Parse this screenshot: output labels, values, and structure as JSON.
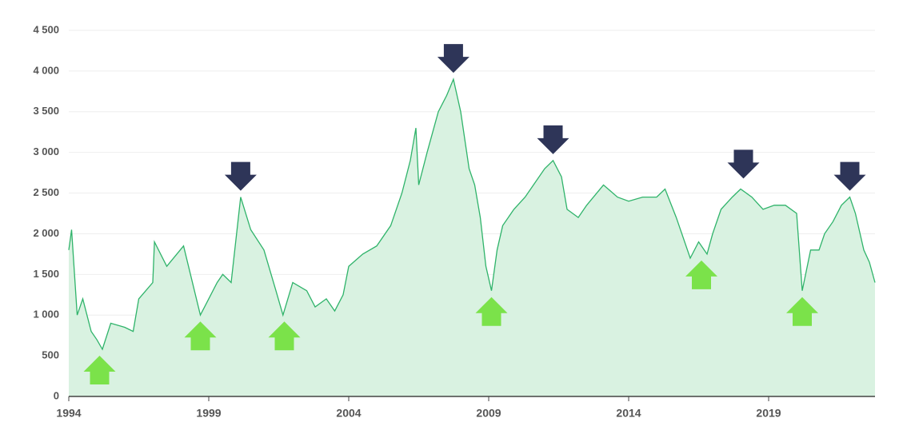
{
  "chart_data": {
    "type": "area",
    "x": [
      1994.0,
      1994.1,
      1994.3,
      1994.5,
      1994.8,
      1995.0,
      1995.2,
      1995.5,
      1996.0,
      1996.3,
      1996.5,
      1997.0,
      1997.06,
      1997.5,
      1998.1,
      1998.7,
      1999.3,
      1999.5,
      1999.8,
      2000.14,
      2000.5,
      2000.97,
      2001.4,
      2001.65,
      2002.0,
      2002.5,
      2002.8,
      2003.2,
      2003.5,
      2003.8,
      2004.0,
      2004.5,
      2005.0,
      2005.5,
      2005.9,
      2006.2,
      2006.4,
      2006.5,
      2006.8,
      2007.2,
      2007.5,
      2007.74,
      2008.0,
      2008.3,
      2008.5,
      2008.7,
      2008.9,
      2009.1,
      2009.3,
      2009.5,
      2009.9,
      2010.3,
      2010.6,
      2011.0,
      2011.3,
      2011.6,
      2011.8,
      2012.2,
      2012.5,
      2013.1,
      2013.6,
      2014.0,
      2014.5,
      2015.0,
      2015.3,
      2015.7,
      2016.2,
      2016.5,
      2016.8,
      2017.0,
      2017.3,
      2017.7,
      2018.0,
      2018.4,
      2018.8,
      2019.2,
      2019.6,
      2020.0,
      2020.2,
      2020.5,
      2020.8,
      2021.0,
      2021.3,
      2021.6,
      2021.9,
      2022.1,
      2022.4,
      2022.6,
      2022.8
    ],
    "values": [
      1800,
      2050,
      1000,
      1200,
      800,
      700,
      580,
      900,
      850,
      800,
      1200,
      1400,
      1900,
      1600,
      1850,
      1000,
      1400,
      1500,
      1400,
      2450,
      2050,
      1800,
      1300,
      1000,
      1400,
      1300,
      1100,
      1200,
      1050,
      1250,
      1600,
      1750,
      1850,
      2100,
      2500,
      2900,
      3300,
      2600,
      3000,
      3500,
      3700,
      3900,
      3500,
      2800,
      2600,
      2200,
      1600,
      1300,
      1800,
      2100,
      2300,
      2450,
      2600,
      2800,
      2900,
      2700,
      2300,
      2200,
      2350,
      2600,
      2450,
      2400,
      2450,
      2450,
      2550,
      2200,
      1700,
      1900,
      1750,
      2000,
      2300,
      2450,
      2550,
      2450,
      2300,
      2350,
      2350,
      2250,
      1300,
      1800,
      1800,
      2000,
      2150,
      2350,
      2450,
      2250,
      1800,
      1650,
      1400
    ],
    "color": "#2fb36a",
    "fill": "#d9f2e1",
    "xlim": [
      1994,
      2022.8
    ],
    "xticks": [
      1994,
      1999,
      2004,
      2009,
      2014,
      2019
    ],
    "ylim": [
      0,
      4500
    ],
    "yticks": [
      0,
      500,
      {
        "value": 1000,
        "label": "1 000"
      },
      {
        "value": 1500,
        "label": "1 500"
      },
      {
        "value": 2000,
        "label": "2 000"
      },
      {
        "value": 2500,
        "label": "2 500"
      },
      {
        "value": 3000,
        "label": "3 000"
      },
      {
        "value": 3500,
        "label": "3 500"
      },
      {
        "value": 4000,
        "label": "4 000"
      },
      {
        "value": 4500,
        "label": "4 500"
      }
    ],
    "grid": true,
    "markers": [
      {
        "x": 2000.14,
        "y": 2450,
        "direction": "down",
        "color": "#2e3558"
      },
      {
        "x": 2007.74,
        "y": 3900,
        "direction": "down",
        "color": "#2e3558"
      },
      {
        "x": 2011.3,
        "y": 2900,
        "direction": "down",
        "color": "#2e3558"
      },
      {
        "x": 2018.1,
        "y": 2600,
        "direction": "down",
        "color": "#2e3558"
      },
      {
        "x": 2021.9,
        "y": 2450,
        "direction": "down",
        "color": "#2e3558"
      },
      {
        "x": 1995.1,
        "y": 580,
        "direction": "up",
        "color": "#7be24a"
      },
      {
        "x": 1998.7,
        "y": 1000,
        "direction": "up",
        "color": "#7be24a"
      },
      {
        "x": 2001.7,
        "y": 1000,
        "direction": "up",
        "color": "#7be24a"
      },
      {
        "x": 2009.1,
        "y": 1300,
        "direction": "up",
        "color": "#7be24a"
      },
      {
        "x": 2016.6,
        "y": 1750,
        "direction": "up",
        "color": "#7be24a"
      },
      {
        "x": 2020.2,
        "y": 1300,
        "direction": "up",
        "color": "#7be24a"
      }
    ]
  }
}
